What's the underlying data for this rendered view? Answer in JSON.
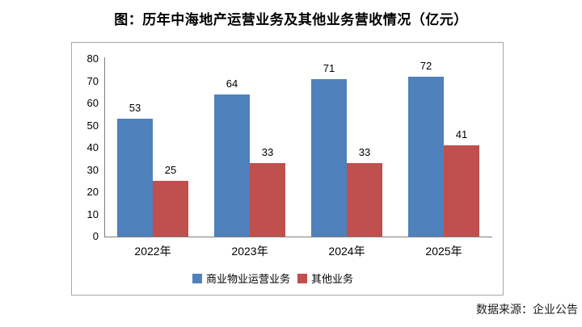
{
  "title": "图：历年中海地产运营业务及其他业务营收情况（亿元）",
  "source_note": "数据来源：企业公告",
  "chart_data": {
    "type": "bar",
    "title": "图：历年中海地产运营业务及其他业务营收情况（亿元）",
    "categories": [
      "2022年",
      "2023年",
      "2024年",
      "2025年"
    ],
    "series": [
      {
        "name": "商业物业运营业务",
        "color": "#4F81BD",
        "values": [
          53,
          64,
          71,
          72
        ]
      },
      {
        "name": "其他业务",
        "color": "#C0504D",
        "values": [
          25,
          33,
          33,
          41
        ]
      }
    ],
    "ylim": [
      0,
      80
    ],
    "yticks": [
      0,
      10,
      20,
      30,
      40,
      50,
      60,
      70,
      80
    ],
    "grid": false,
    "data_labels": true,
    "legend_position": "bottom",
    "xlabel": "",
    "ylabel": ""
  },
  "colors": {
    "series_blue": "#4F81BD",
    "series_red": "#C0504D",
    "axis_line": "#808080",
    "frame_border": "#A6A6A6",
    "text": "#000000"
  }
}
